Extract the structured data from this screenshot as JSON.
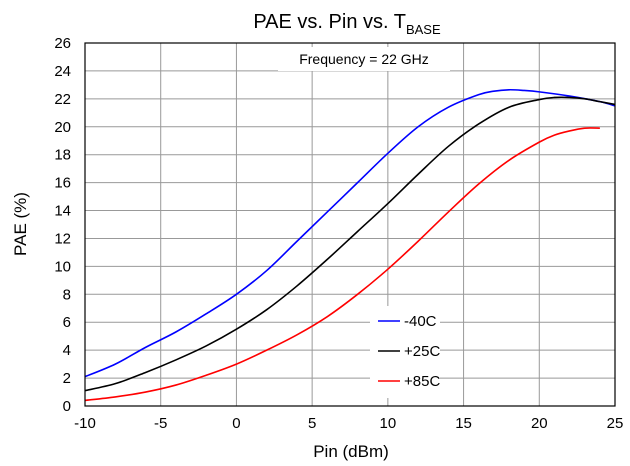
{
  "chart_data": {
    "type": "line",
    "title": {
      "main": "PAE vs. Pin vs. T",
      "subscript": "BASE"
    },
    "xlabel": "Pin (dBm)",
    "ylabel": "PAE (%)",
    "xlim": [
      -10,
      25
    ],
    "ylim": [
      0,
      26
    ],
    "xticks": [
      -10,
      -5,
      0,
      5,
      10,
      15,
      20,
      25
    ],
    "yticks": [
      0,
      2,
      4,
      6,
      8,
      10,
      12,
      14,
      16,
      18,
      20,
      22,
      24,
      26
    ],
    "grid": true,
    "annotation": "Frequency = 22 GHz",
    "legend_position": "lower-right",
    "series": [
      {
        "name": "-40C",
        "color": "#0000ff",
        "x": [
          -10,
          -8,
          -6,
          -4,
          -2,
          0,
          2,
          4,
          6,
          8,
          10,
          12,
          14,
          16,
          17,
          18,
          19,
          20,
          22,
          24,
          25
        ],
        "y": [
          2.1,
          3.0,
          4.2,
          5.3,
          6.6,
          8.0,
          9.7,
          11.8,
          13.9,
          16.0,
          18.1,
          20.0,
          21.4,
          22.3,
          22.55,
          22.65,
          22.6,
          22.5,
          22.2,
          21.8,
          21.5
        ]
      },
      {
        "name": "+25C",
        "color": "#000000",
        "x": [
          -10,
          -8,
          -6,
          -4,
          -2,
          0,
          2,
          4,
          6,
          8,
          10,
          12,
          14,
          16,
          18,
          20,
          21,
          22,
          23,
          24,
          25
        ],
        "y": [
          1.1,
          1.6,
          2.4,
          3.3,
          4.3,
          5.5,
          6.9,
          8.6,
          10.5,
          12.5,
          14.5,
          16.6,
          18.6,
          20.2,
          21.4,
          21.95,
          22.1,
          22.1,
          22.0,
          21.8,
          21.6
        ]
      },
      {
        "name": "+85C",
        "color": "#ff0000",
        "x": [
          -10,
          -8,
          -6,
          -4,
          -2,
          0,
          2,
          4,
          6,
          8,
          10,
          12,
          14,
          16,
          18,
          20,
          21,
          22,
          23,
          24
        ],
        "y": [
          0.4,
          0.65,
          1.0,
          1.5,
          2.2,
          3.0,
          4.0,
          5.1,
          6.4,
          8.0,
          9.8,
          11.8,
          13.9,
          15.9,
          17.6,
          18.9,
          19.4,
          19.7,
          19.9,
          19.9
        ]
      }
    ]
  }
}
